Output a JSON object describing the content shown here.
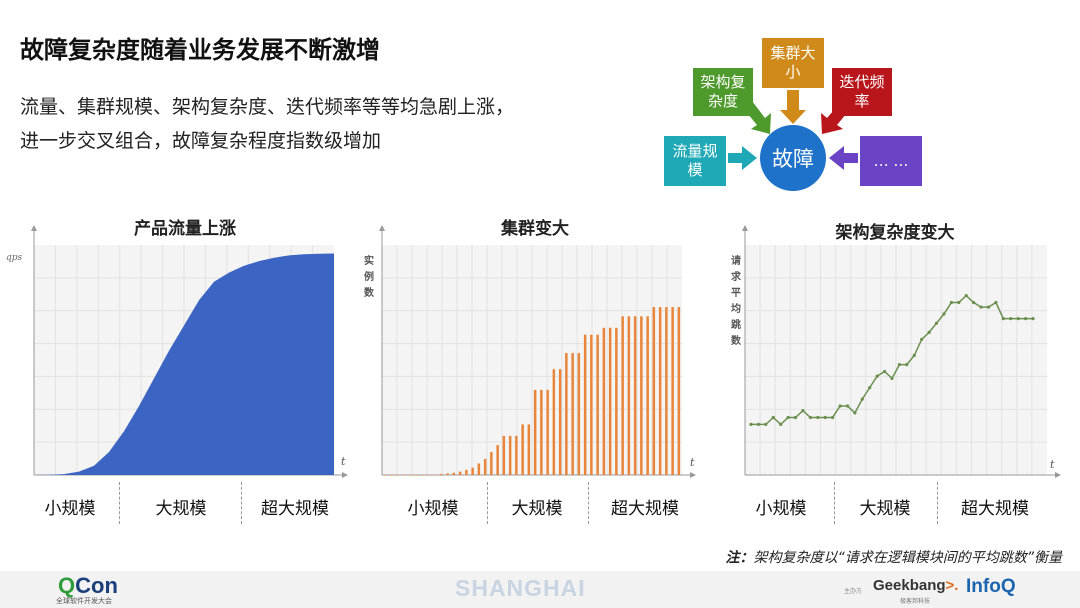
{
  "slide": {
    "title": "故障复杂度随着业务发展不断激增",
    "line1": "流量、集群规模、架构复杂度、迭代频率等等均急剧上涨，",
    "line2": "进一步交叉组合，故障复杂程度指数级增加"
  },
  "diagram": {
    "center": "故障",
    "factors": [
      {
        "label": "集群大小",
        "color": "#d08a1a"
      },
      {
        "label": "架构复杂度",
        "color": "#4f9a2c"
      },
      {
        "label": "迭代频率",
        "color": "#b8161b"
      },
      {
        "label": "流量规模",
        "color": "#1fa9b6"
      },
      {
        "label": "… …",
        "color": "#6a44c4"
      }
    ]
  },
  "chart_data": [
    {
      "type": "area",
      "title": "产品流量上涨",
      "ylabel": "qps",
      "xlabel": "t",
      "color": "#3c64c2",
      "x": [
        0,
        0.05,
        0.1,
        0.15,
        0.2,
        0.25,
        0.3,
        0.35,
        0.4,
        0.45,
        0.5,
        0.55,
        0.6,
        0.65,
        0.7,
        0.75,
        0.8,
        0.85,
        0.9,
        0.95,
        1.0
      ],
      "values": [
        0,
        0.1,
        0.4,
        1.5,
        4,
        10,
        19,
        30,
        42,
        54,
        65,
        76,
        84,
        88,
        91,
        93,
        94.5,
        95.5,
        96,
        96.2,
        96.3
      ],
      "ylim": [
        0,
        100
      ]
    },
    {
      "type": "bar",
      "title": "集群变大",
      "ylabel": "实例数",
      "xlabel": "t",
      "color": "#e8853a",
      "values": [
        0,
        0,
        0,
        0,
        0,
        0,
        0,
        0,
        0,
        0.5,
        0.7,
        1,
        1.5,
        2.2,
        3.2,
        5,
        7,
        10,
        13,
        17,
        17,
        17,
        22,
        22,
        37,
        37,
        37,
        46,
        46,
        53,
        53,
        53,
        61,
        61,
        61,
        64,
        64,
        64,
        69,
        69,
        69,
        69,
        69,
        73,
        73,
        73,
        73,
        73
      ],
      "ylim": [
        0,
        100
      ]
    },
    {
      "type": "line",
      "title": "架构复杂度变大",
      "ylabel": "请求平均跳数",
      "xlabel": "t",
      "color": "#6a8f4e",
      "values": [
        22,
        22,
        22,
        25,
        22,
        25,
        25,
        28,
        25,
        25,
        25,
        25,
        30,
        30,
        27,
        33,
        38,
        43,
        45,
        42,
        48,
        48,
        52,
        59,
        62,
        66,
        70,
        75,
        75,
        78,
        75,
        73,
        73,
        75,
        68,
        68,
        68,
        68,
        68
      ],
      "ylim": [
        0,
        100
      ]
    }
  ],
  "scales": [
    "小规模",
    "大规模",
    "超大规模"
  ],
  "note": {
    "prefix": "注：",
    "text": "架构复杂度以“请求在逻辑模块间的平均跳数”衡量"
  },
  "footer": {
    "qcon": "Con",
    "qcon_q": "Q",
    "qcon_sub": "全球软件开发大会",
    "city": "SHANGHAI",
    "host": "主办方",
    "geek": "Geek",
    "geek_b": "bang",
    "geek_arrow": ">.",
    "geek_sub": "极客邦科技",
    "infoq": "InfoQ"
  }
}
